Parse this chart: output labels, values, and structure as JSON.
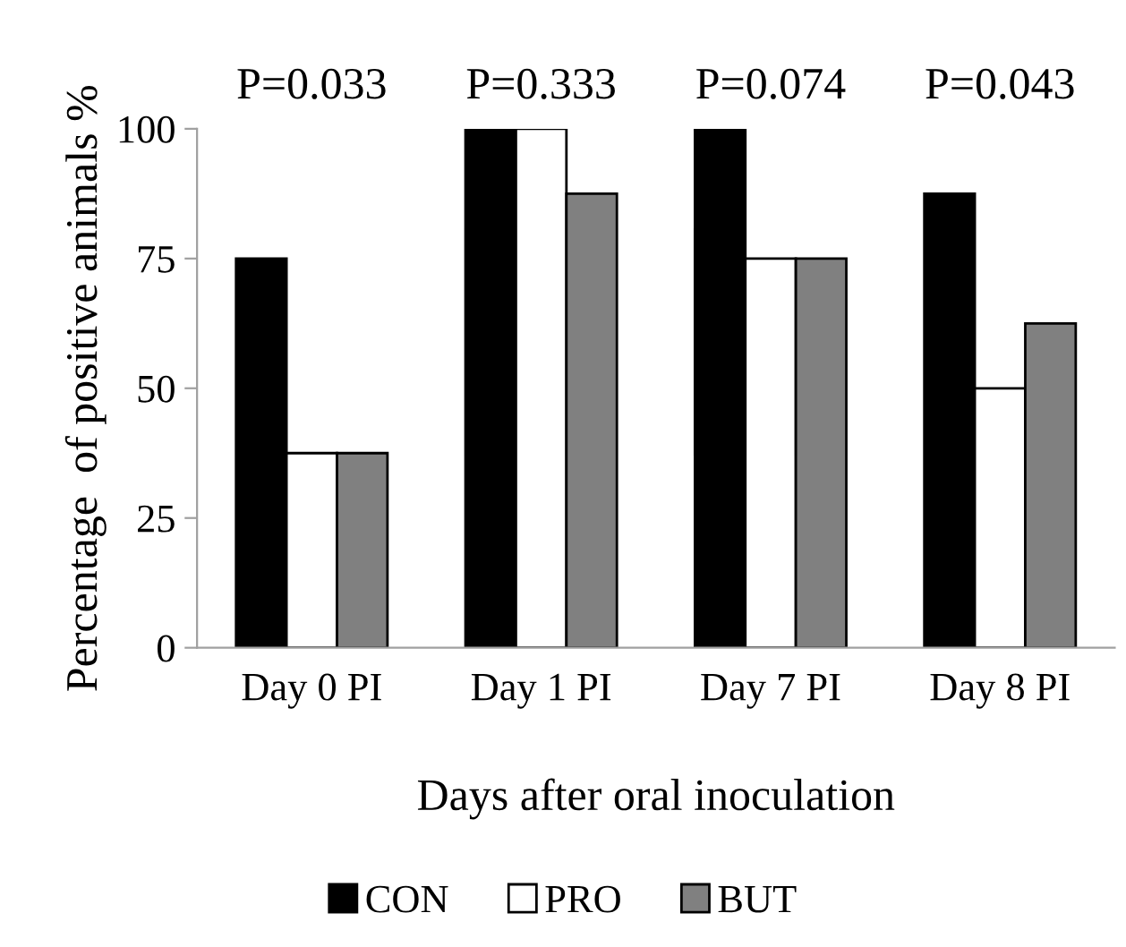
{
  "chart_data": {
    "type": "bar",
    "xlabel": "Days after oral inoculation",
    "ylabel": "Percentage  of positive animals %",
    "categories": [
      "Day 0 PI",
      "Day 1 PI",
      "Day 7 PI",
      "Day 8 PI"
    ],
    "series": [
      {
        "name": "CON",
        "color": "#000000",
        "values": [
          75,
          100,
          100,
          87.5
        ]
      },
      {
        "name": "PRO",
        "color": "#ffffff",
        "values": [
          37.5,
          100,
          75,
          50
        ]
      },
      {
        "name": "BUT",
        "color": "#808080",
        "values": [
          37.5,
          87.5,
          75,
          62.5
        ]
      }
    ],
    "ylim": [
      0,
      100
    ],
    "yticks": [
      0,
      25,
      50,
      75,
      100
    ],
    "grid": false,
    "legend": "bottom",
    "annotations": [
      "P=0.033",
      "P=0.333",
      "P=0.074",
      "P=0.043"
    ]
  }
}
